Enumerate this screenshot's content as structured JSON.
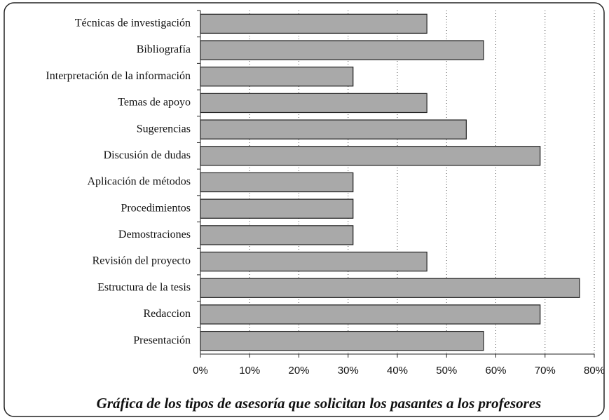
{
  "chart_data": {
    "type": "bar",
    "orientation": "horizontal",
    "caption": "Gráfica de los tipos de asesoría que solicitan los pasantes a los profesores",
    "categories": [
      "Técnicas de investigación",
      "Bibliografía",
      "Interpretación de la información",
      "Temas de apoyo",
      "Sugerencias",
      "Discusión de dudas",
      "Aplicación de métodos",
      "Procedimientos",
      "Demostraciones",
      "Revisión del proyecto",
      "Estructura de la tesis",
      "Redaccion",
      "Presentación"
    ],
    "values": [
      46,
      57.5,
      31,
      46,
      54,
      69,
      31,
      31,
      31,
      46,
      77,
      69,
      57.5
    ],
    "color": "#a9a9a9",
    "xlim": [
      0,
      80
    ],
    "xticks": [
      {
        "value": 0,
        "label": "0%"
      },
      {
        "value": 10,
        "label": "10%"
      },
      {
        "value": 20,
        "label": "20%"
      },
      {
        "value": 30,
        "label": "30%"
      },
      {
        "value": 40,
        "label": "40%"
      },
      {
        "value": 50,
        "label": "50%"
      },
      {
        "value": 60,
        "label": "60%"
      },
      {
        "value": 70,
        "label": "70%"
      },
      {
        "value": 80,
        "label": "80%"
      }
    ],
    "grid": true
  }
}
